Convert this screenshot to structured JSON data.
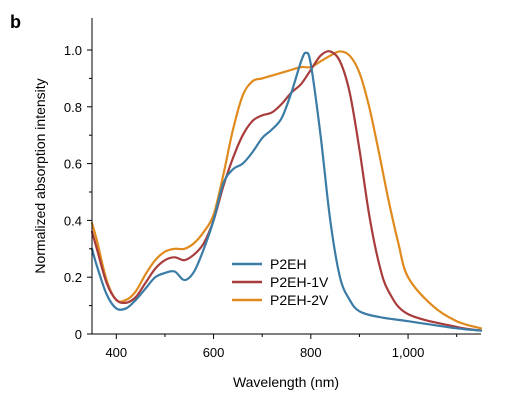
{
  "chart_data": {
    "type": "line",
    "panel_label": "b",
    "xlabel": "Wavelength (nm)",
    "ylabel": "Normalized absorption intensity",
    "xlim": [
      350,
      1150
    ],
    "ylim": [
      0,
      1.1
    ],
    "xticks": [
      {
        "value": 400,
        "label": "400"
      },
      {
        "value": 600,
        "label": "600"
      },
      {
        "value": 800,
        "label": "800"
      },
      {
        "value": 1000,
        "label": "1,000"
      }
    ],
    "yticks": [
      {
        "value": 0,
        "label": "0"
      },
      {
        "value": 0.2,
        "label": "0.2"
      },
      {
        "value": 0.4,
        "label": "0.4"
      },
      {
        "value": 0.6,
        "label": "0.6"
      },
      {
        "value": 0.8,
        "label": "0.8"
      },
      {
        "value": 1.0,
        "label": "1.0"
      }
    ],
    "grid": false,
    "legend_position": "lower-center",
    "series": [
      {
        "name": "P2EH",
        "color": "#3a7ca5",
        "x": [
          350,
          360,
          380,
          400,
          420,
          440,
          460,
          480,
          500,
          520,
          540,
          560,
          580,
          600,
          620,
          640,
          660,
          680,
          700,
          720,
          740,
          760,
          780,
          790,
          800,
          820,
          840,
          860,
          880,
          900,
          940,
          1000,
          1100,
          1150
        ],
        "y": [
          0.3,
          0.24,
          0.14,
          0.09,
          0.09,
          0.12,
          0.16,
          0.2,
          0.215,
          0.22,
          0.19,
          0.22,
          0.3,
          0.4,
          0.53,
          0.58,
          0.6,
          0.64,
          0.69,
          0.72,
          0.76,
          0.85,
          0.96,
          0.99,
          0.95,
          0.7,
          0.4,
          0.2,
          0.12,
          0.08,
          0.06,
          0.045,
          0.02,
          0.012
        ]
      },
      {
        "name": "P2EH-1V",
        "color": "#a83c3c",
        "x": [
          350,
          360,
          380,
          400,
          420,
          440,
          460,
          480,
          500,
          520,
          540,
          560,
          580,
          600,
          620,
          640,
          660,
          680,
          700,
          720,
          740,
          760,
          780,
          800,
          820,
          840,
          860,
          880,
          900,
          920,
          940,
          960,
          1000,
          1100,
          1150
        ],
        "y": [
          0.36,
          0.3,
          0.18,
          0.12,
          0.11,
          0.13,
          0.18,
          0.23,
          0.26,
          0.27,
          0.26,
          0.28,
          0.32,
          0.4,
          0.52,
          0.62,
          0.7,
          0.75,
          0.77,
          0.78,
          0.81,
          0.85,
          0.88,
          0.93,
          0.98,
          0.995,
          0.96,
          0.85,
          0.65,
          0.42,
          0.25,
          0.15,
          0.07,
          0.025,
          0.012
        ]
      },
      {
        "name": "P2EH-2V",
        "color": "#e08a1e",
        "x": [
          350,
          360,
          380,
          400,
          420,
          440,
          460,
          480,
          500,
          520,
          540,
          560,
          580,
          600,
          620,
          640,
          660,
          680,
          700,
          720,
          740,
          760,
          780,
          800,
          820,
          840,
          860,
          880,
          900,
          920,
          940,
          960,
          980,
          1000,
          1050,
          1100,
          1150
        ],
        "y": [
          0.39,
          0.33,
          0.19,
          0.12,
          0.12,
          0.15,
          0.21,
          0.26,
          0.29,
          0.3,
          0.3,
          0.32,
          0.36,
          0.42,
          0.56,
          0.72,
          0.84,
          0.89,
          0.9,
          0.91,
          0.92,
          0.93,
          0.94,
          0.94,
          0.96,
          0.98,
          0.995,
          0.98,
          0.92,
          0.8,
          0.64,
          0.47,
          0.32,
          0.2,
          0.1,
          0.045,
          0.02
        ]
      }
    ]
  }
}
